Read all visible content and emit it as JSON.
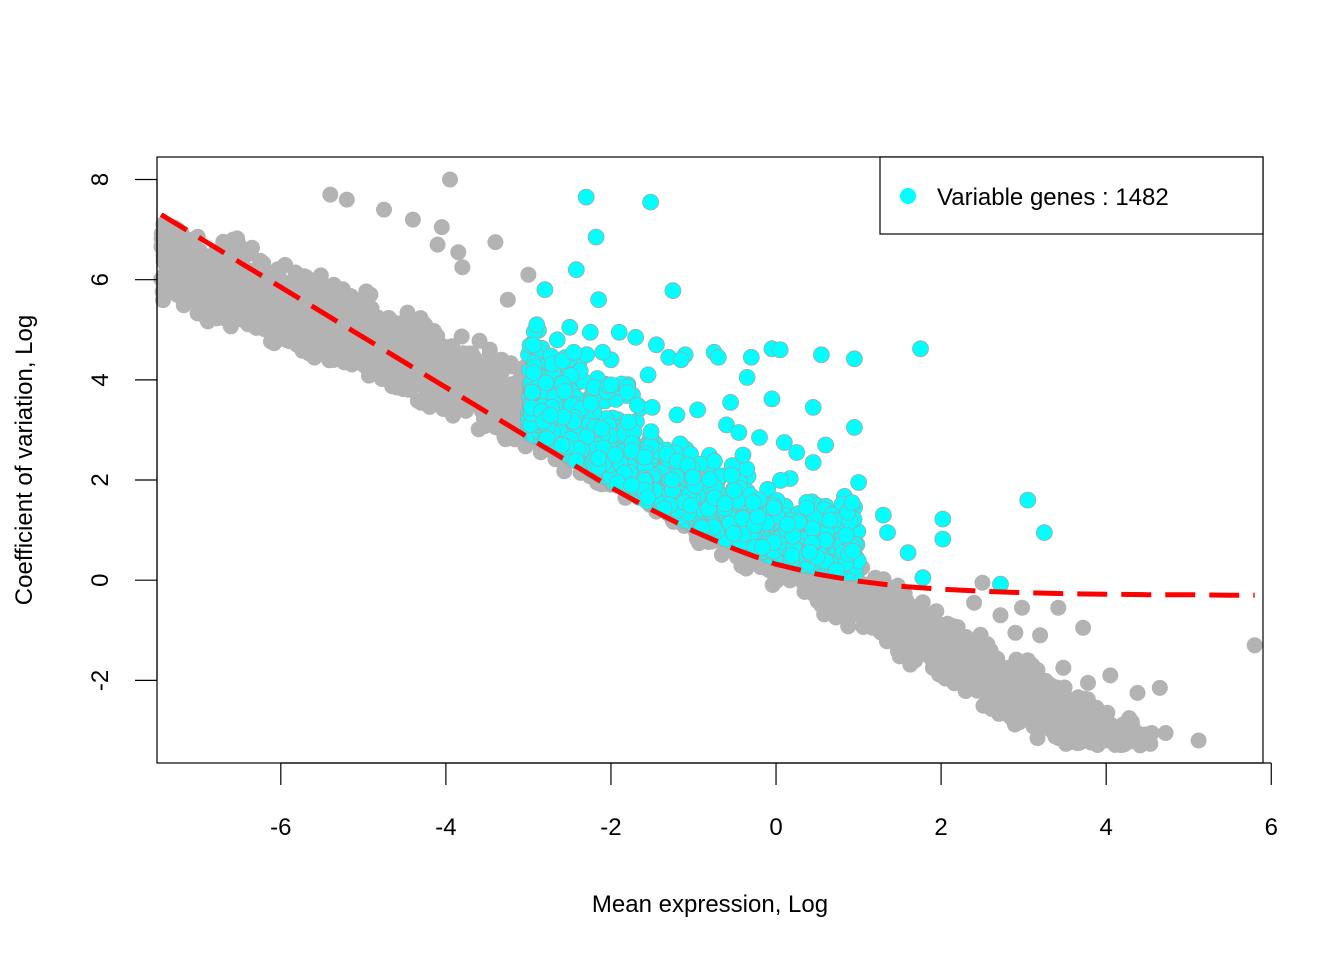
{
  "chart_data": {
    "type": "scatter",
    "title": "",
    "xlabel": "Mean expression, Log",
    "ylabel": "Coefficient of variation, Log",
    "xlim": [
      -7.5,
      5.9
    ],
    "ylim": [
      -3.65,
      8.45
    ],
    "x_ticks": [
      -6,
      -4,
      -2,
      0,
      2,
      4,
      6
    ],
    "x_tick_labels": [
      "-6",
      "-4",
      "-2",
      "0",
      "2",
      "4",
      "6"
    ],
    "y_ticks": [
      -2,
      0,
      2,
      4,
      6,
      8
    ],
    "y_tick_labels": [
      "-2",
      "0",
      "2",
      "4",
      "6",
      "8"
    ],
    "grid": false,
    "legend": {
      "position": "top-right",
      "entries": [
        "Variable genes : 1482"
      ]
    },
    "colors": {
      "all_genes": "#b3b3b3",
      "variable_genes": "#00ffff",
      "variable_outline": "#a6a6a6",
      "fit": "#ff0000"
    },
    "series": [
      {
        "name": "Variable genes : 1482",
        "role": "variable",
        "points": [
          [
            -2.3,
            7.65
          ],
          [
            -1.52,
            7.55
          ],
          [
            -2.18,
            6.85
          ],
          [
            -2.42,
            6.2
          ],
          [
            -2.15,
            5.6
          ],
          [
            -1.25,
            5.78
          ],
          [
            -2.8,
            5.8
          ],
          [
            -1.75,
            1.9
          ],
          [
            1.75,
            4.62
          ],
          [
            0.55,
            4.5
          ],
          [
            0.95,
            4.42
          ],
          [
            0.95,
            3.05
          ],
          [
            0.45,
            3.45
          ],
          [
            0.6,
            2.7
          ],
          [
            1.0,
            1.95
          ],
          [
            3.05,
            1.6
          ],
          [
            3.25,
            0.95
          ],
          [
            2.02,
            1.22
          ],
          [
            2.02,
            0.82
          ],
          [
            1.78,
            0.05
          ],
          [
            2.72,
            -0.08
          ],
          [
            1.6,
            0.55
          ],
          [
            1.35,
            0.95
          ],
          [
            1.3,
            1.3
          ],
          [
            0.92,
            1.55
          ],
          [
            0.85,
            0.9
          ],
          [
            -0.05,
            4.62
          ],
          [
            0.05,
            4.6
          ],
          [
            -0.3,
            4.45
          ],
          [
            -0.55,
            3.55
          ],
          [
            -0.05,
            3.62
          ],
          [
            -0.35,
            4.05
          ],
          [
            -1.1,
            4.5
          ],
          [
            -0.75,
            4.55
          ],
          [
            -0.7,
            4.45
          ],
          [
            -1.45,
            4.7
          ],
          [
            -1.7,
            4.85
          ],
          [
            -1.9,
            4.95
          ],
          [
            -2.0,
            4.4
          ],
          [
            -2.1,
            4.55
          ],
          [
            -2.5,
            5.05
          ],
          [
            -2.9,
            5.1
          ],
          [
            -2.65,
            4.8
          ],
          [
            -2.45,
            4.55
          ],
          [
            -2.25,
            4.95
          ],
          [
            -1.55,
            4.1
          ],
          [
            -1.3,
            4.45
          ],
          [
            -1.15,
            4.4
          ],
          [
            -2.0,
            3.9
          ],
          [
            -1.8,
            3.75
          ],
          [
            -1.5,
            3.45
          ],
          [
            -1.2,
            3.3
          ],
          [
            -0.95,
            3.4
          ],
          [
            -0.6,
            3.1
          ],
          [
            -0.45,
            2.95
          ],
          [
            -0.2,
            2.85
          ],
          [
            -0.4,
            2.5
          ],
          [
            0.1,
            2.75
          ],
          [
            0.25,
            2.55
          ],
          [
            0.45,
            2.35
          ]
        ]
      },
      {
        "name": "",
        "role": "other",
        "points": [
          [
            -3.95,
            8.0
          ],
          [
            -3.4,
            6.75
          ],
          [
            -3.85,
            6.55
          ],
          [
            -3.8,
            6.25
          ],
          [
            -3.0,
            6.1
          ],
          [
            -3.25,
            5.6
          ],
          [
            -4.4,
            7.2
          ],
          [
            -4.05,
            7.05
          ],
          [
            -5.4,
            7.7
          ],
          [
            -5.2,
            7.6
          ],
          [
            -4.75,
            7.4
          ],
          [
            -4.1,
            6.7
          ],
          [
            5.8,
            -1.3
          ],
          [
            5.12,
            -3.2
          ],
          [
            4.65,
            -2.15
          ],
          [
            4.38,
            -2.25
          ],
          [
            4.05,
            -1.9
          ],
          [
            3.78,
            -2.05
          ],
          [
            3.72,
            -0.95
          ],
          [
            3.48,
            -1.75
          ],
          [
            3.42,
            -0.55
          ],
          [
            2.98,
            -0.55
          ],
          [
            2.72,
            -0.7
          ],
          [
            2.9,
            -1.05
          ],
          [
            3.2,
            -1.1
          ],
          [
            3.05,
            -1.6
          ],
          [
            2.5,
            -0.05
          ],
          [
            2.4,
            -0.45
          ],
          [
            2.2,
            -1.25
          ],
          [
            2.05,
            -1.55
          ],
          [
            1.9,
            -1.75
          ],
          [
            1.7,
            -1.55
          ],
          [
            2.55,
            -1.65
          ],
          [
            2.85,
            -2.75
          ],
          [
            3.2,
            -2.45
          ],
          [
            3.55,
            -2.8
          ],
          [
            3.95,
            -2.75
          ],
          [
            4.3,
            -2.9
          ],
          [
            4.55,
            -3.05
          ],
          [
            4.72,
            -3.05
          ],
          [
            4.45,
            -3.2
          ],
          [
            3.85,
            -3.05
          ],
          [
            3.3,
            -2.75
          ],
          [
            2.6,
            -2.2
          ],
          [
            2.45,
            -1.95
          ],
          [
            2.3,
            -2.1
          ]
        ]
      }
    ],
    "fit_curve": {
      "style": "dashed",
      "x": [
        -7.45,
        -7.0,
        -6.5,
        -6.0,
        -5.5,
        -5.0,
        -4.5,
        -4.0,
        -3.5,
        -3.0,
        -2.5,
        -2.0,
        -1.5,
        -1.0,
        -0.5,
        0.0,
        0.5,
        1.0,
        1.5,
        2.0,
        2.5,
        3.0,
        3.5,
        4.0,
        4.5,
        5.0,
        5.5,
        5.8
      ],
      "y": [
        7.3,
        6.85,
        6.35,
        5.85,
        5.35,
        4.85,
        4.35,
        3.85,
        3.35,
        2.85,
        2.35,
        1.85,
        1.4,
        0.98,
        0.62,
        0.32,
        0.12,
        -0.02,
        -0.12,
        -0.18,
        -0.22,
        -0.25,
        -0.27,
        -0.28,
        -0.29,
        -0.29,
        -0.3,
        -0.3
      ]
    }
  }
}
